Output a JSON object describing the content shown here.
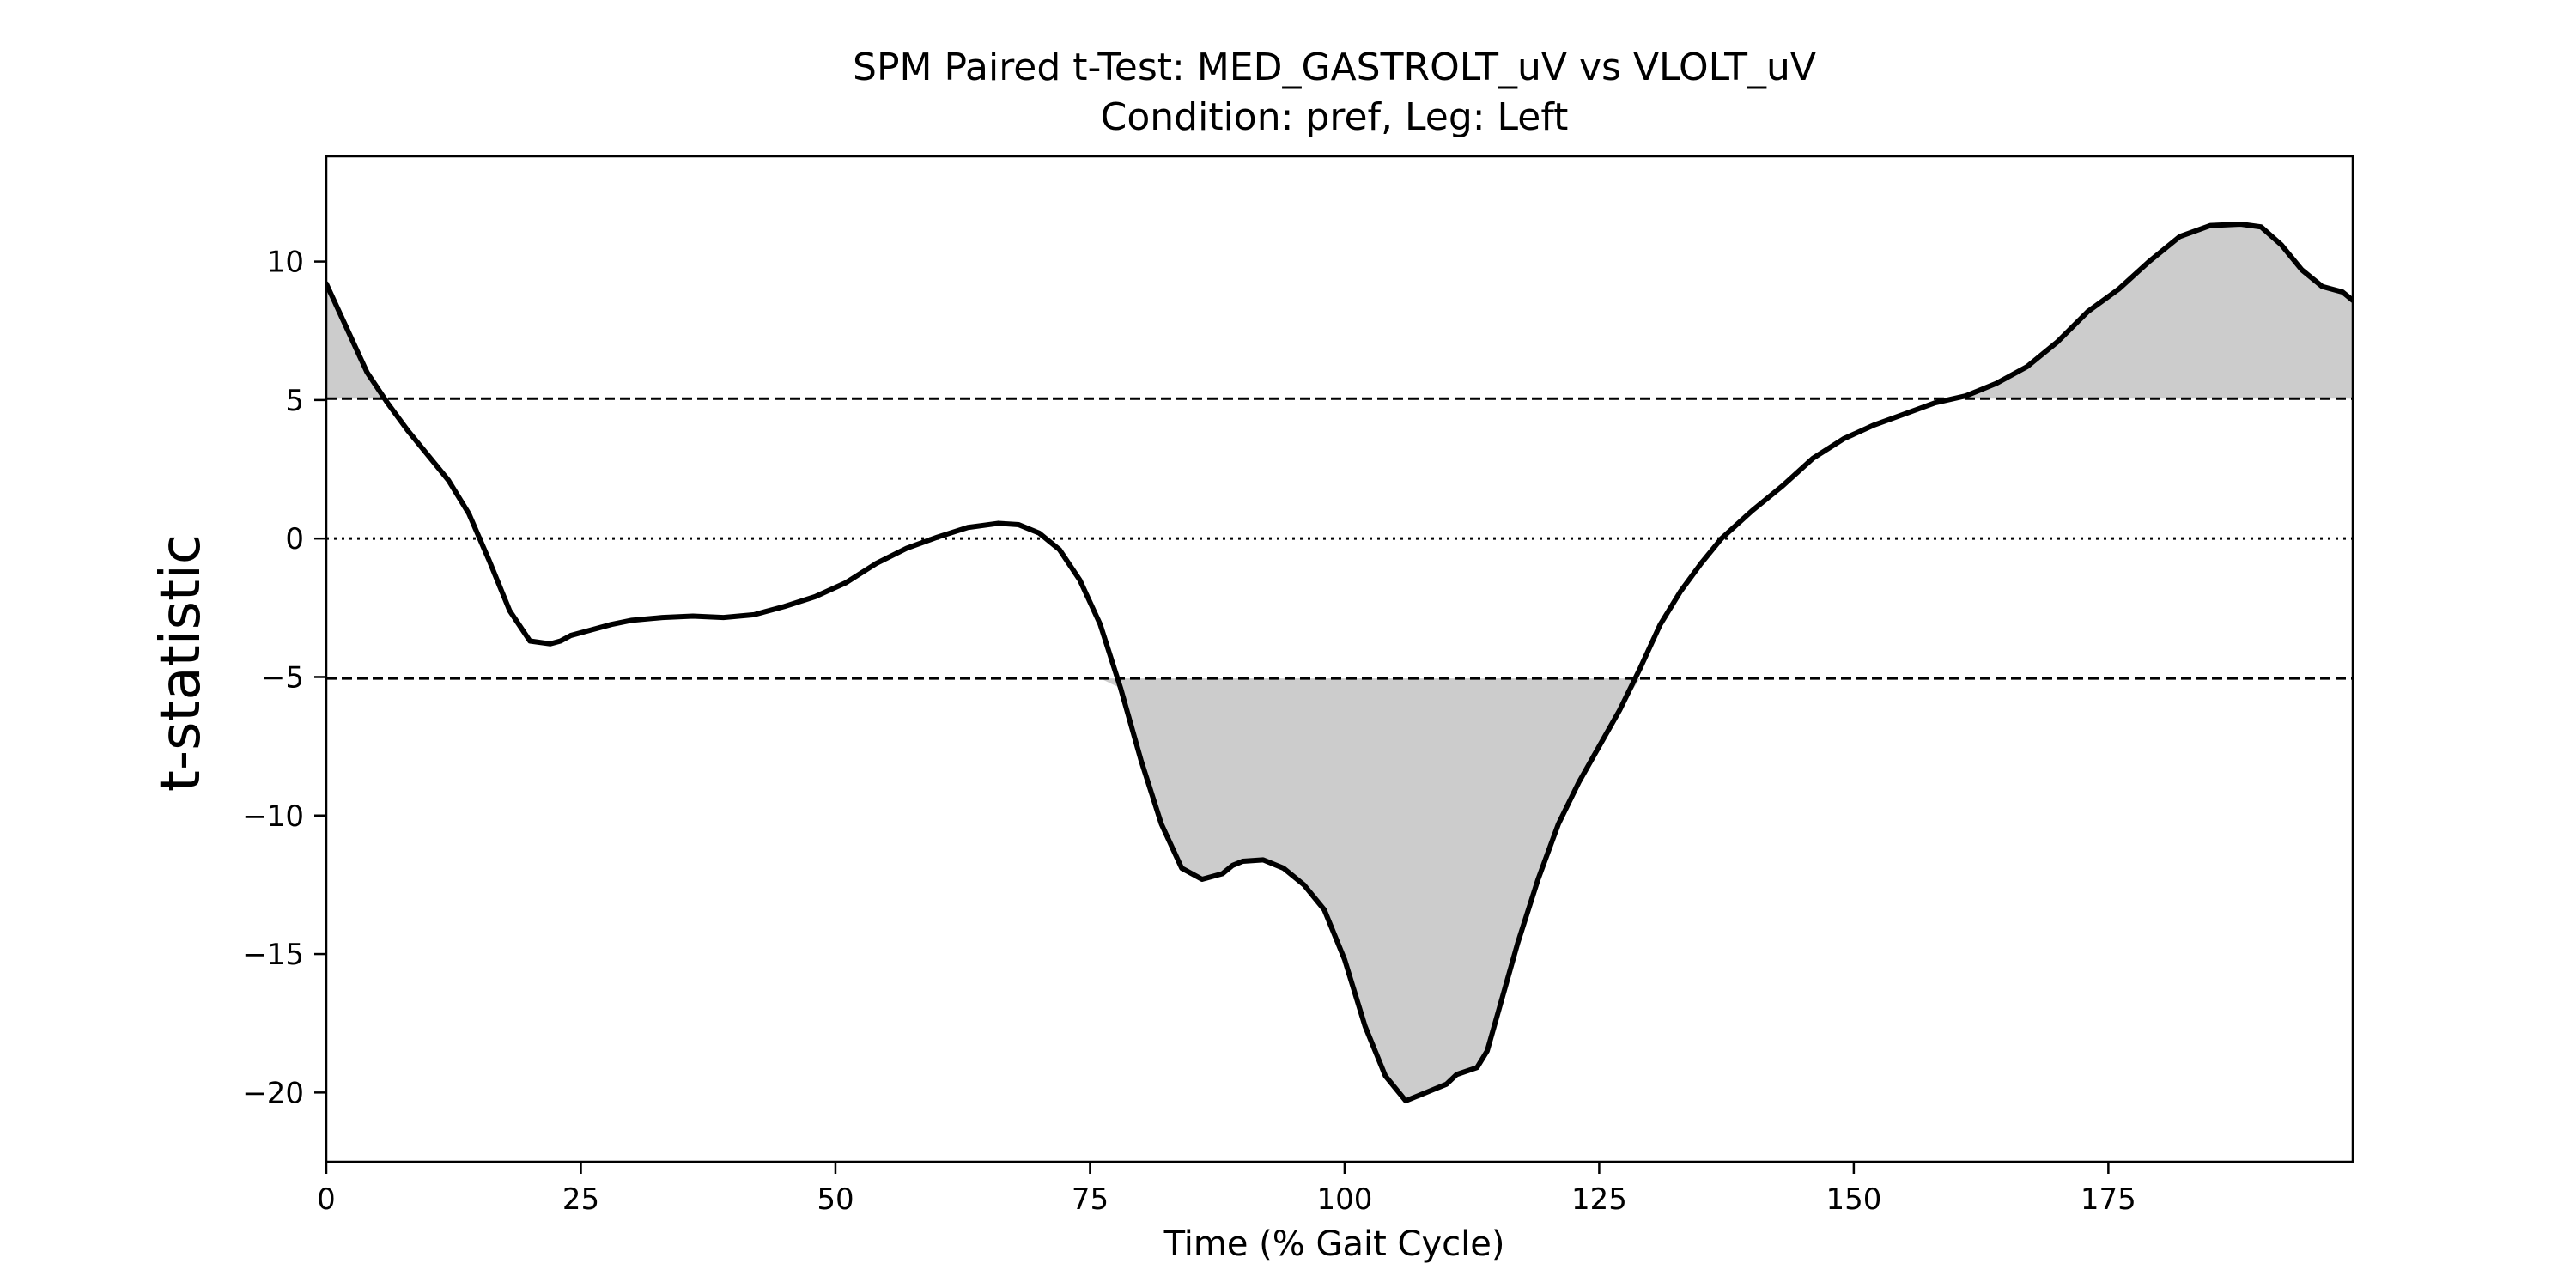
{
  "chart_data": {
    "type": "line",
    "title": "SPM Paired t-Test: MED_GASTROLT_uV vs VLOLT_uV",
    "subtitle": "Condition: pref, Leg: Left",
    "xlabel": "Time (% Gait Cycle)",
    "ylabel": "t-statistic",
    "xlim": [
      0,
      199
    ],
    "ylim": [
      -22.5,
      13.8
    ],
    "x_ticks": [
      0,
      25,
      50,
      75,
      100,
      125,
      150,
      175
    ],
    "y_ticks": [
      10,
      5,
      0,
      -5,
      -10,
      -15,
      -20
    ],
    "x_tick_labels": [
      "0",
      "25",
      "50",
      "75",
      "100",
      "125",
      "150",
      "175"
    ],
    "y_tick_labels": [
      "10",
      "5",
      "0",
      "−5",
      "−10",
      "−15",
      "−20"
    ],
    "threshold_upper": 5.05,
    "threshold_lower": -5.05,
    "zero_line": 0,
    "grid": false,
    "series": [
      {
        "x": [
          0,
          2,
          4,
          6,
          8,
          10,
          12,
          14,
          16,
          18,
          20,
          22,
          23,
          24,
          26,
          28,
          30,
          33,
          36,
          39,
          42,
          45,
          48,
          51,
          54,
          57,
          60,
          63,
          66,
          68,
          70,
          72,
          74,
          76,
          78,
          80,
          82,
          84,
          86,
          88,
          89,
          90,
          92,
          94,
          96,
          98,
          100,
          102,
          104,
          106,
          108,
          110,
          111,
          113,
          114,
          115,
          117,
          119,
          121,
          123,
          125,
          127,
          129,
          131,
          133,
          135,
          137,
          140,
          143,
          146,
          149,
          152,
          155,
          158,
          161,
          164,
          167,
          170,
          173,
          176,
          179,
          182,
          185,
          188,
          190,
          192,
          194,
          196,
          198,
          199
        ],
        "y": [
          9.2,
          7.6,
          6.0,
          4.9,
          3.9,
          3.0,
          2.1,
          0.9,
          -0.8,
          -2.6,
          -3.7,
          -3.8,
          -3.7,
          -3.5,
          -3.3,
          -3.1,
          -2.95,
          -2.85,
          -2.8,
          -2.85,
          -2.75,
          -2.45,
          -2.1,
          -1.6,
          -0.9,
          -0.35,
          0.05,
          0.4,
          0.55,
          0.5,
          0.2,
          -0.4,
          -1.5,
          -3.1,
          -5.4,
          -8.0,
          -10.3,
          -11.9,
          -12.3,
          -12.1,
          -11.8,
          -11.65,
          -11.6,
          -11.9,
          -12.5,
          -13.4,
          -15.2,
          -17.6,
          -19.4,
          -20.3,
          -20.0,
          -19.7,
          -19.35,
          -19.1,
          -18.5,
          -17.2,
          -14.6,
          -12.3,
          -10.3,
          -8.8,
          -7.5,
          -6.2,
          -4.7,
          -3.1,
          -1.9,
          -0.9,
          0.0,
          1.0,
          1.9,
          2.9,
          3.6,
          4.1,
          4.5,
          4.9,
          5.15,
          5.6,
          6.2,
          7.1,
          8.2,
          9.0,
          10.0,
          10.9,
          11.3,
          11.35,
          11.25,
          10.6,
          9.7,
          9.1,
          8.9,
          8.6
        ]
      }
    ]
  }
}
